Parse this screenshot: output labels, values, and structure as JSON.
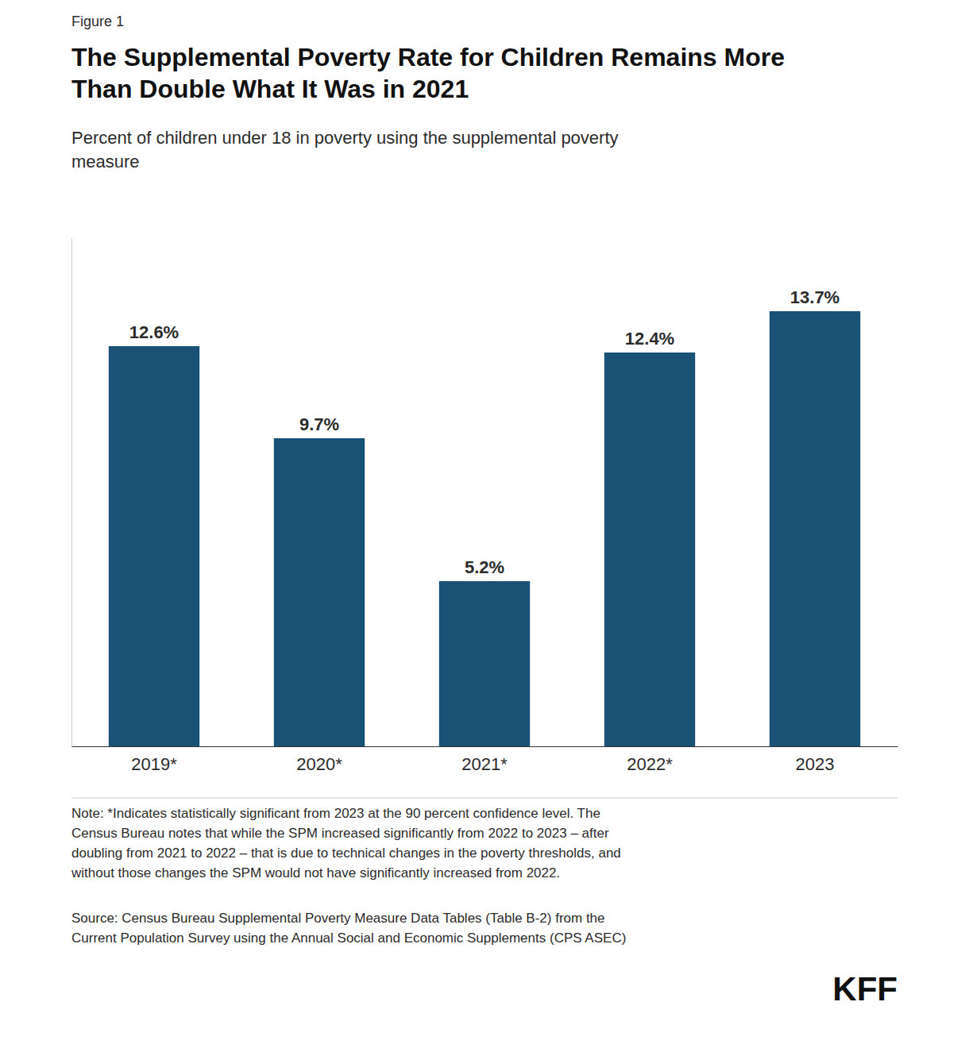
{
  "chart_data": {
    "type": "bar",
    "title": "The Supplemental Poverty Rate for Children Remains More\nThan Double What It Was in 2021",
    "subtitle": "Percent of children under 18 in poverty using the supplemental poverty\nmeasure",
    "annotations": [
      "Figure 1",
      "Note: *Indicates statistically significant from 2023 at the 90 percent confidence level. The\nCensus Bureau notes that while the SPM increased significantly from 2022 to 2023 – after\ndoubling from 2021 to 2022 – that is due to technical changes in the poverty thresholds, and\nwithout those changes the SPM would not have significantly increased from 2022.",
      "Source: Census Bureau Supplemental Poverty Measure Data Tables (Table B-2) from the\nCurrent Population Survey using the Annual Social and Economic Supplements (CPS ASEC)",
      "KFF"
    ],
    "categories": [
      "2019*",
      "2020*",
      "2021*",
      "2022*",
      "2023"
    ],
    "values": [
      12.6,
      9.7,
      5.2,
      12.4,
      13.7
    ],
    "value_labels": [
      "12.6%",
      "9.7%",
      "5.2%",
      "12.4%",
      "13.7%"
    ],
    "color": "#1a5276",
    "ylim": [
      0,
      16
    ],
    "grid": false,
    "data_labels": true,
    "tick_labels": "x"
  }
}
